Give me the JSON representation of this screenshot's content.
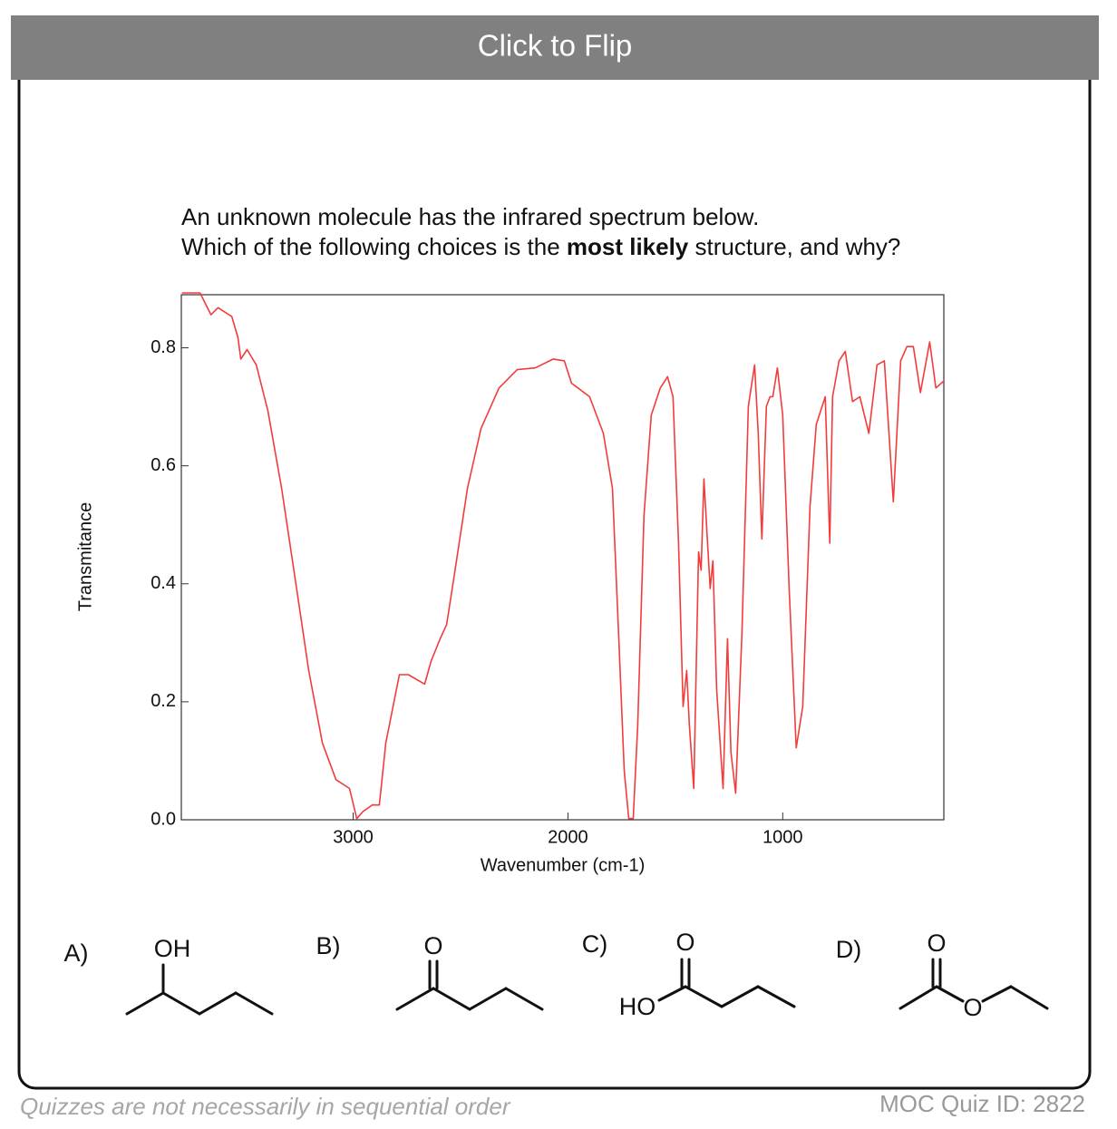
{
  "header": {
    "button": "Click to Flip"
  },
  "question": {
    "line1": "An unknown molecule has the infrared spectrum below.",
    "line2": [
      "Which of the following choices is the ",
      "most likely",
      " structure, and why?"
    ]
  },
  "chart_data": {
    "type": "line",
    "xlabel": "Wavenumber (cm-1)",
    "ylabel": "Transmitance",
    "xlim": [
      3800,
      250
    ],
    "ylim": [
      0,
      0.89
    ],
    "xticks": [
      3000,
      2000,
      1000
    ],
    "yticks": [
      {
        "value": 0,
        "label": "0.0"
      },
      0.2,
      0.4,
      0.6,
      0.8
    ],
    "color": "#f23c3c",
    "x": [
      3797,
      3713,
      3662,
      3629,
      3565,
      3536,
      3523,
      3494,
      3451,
      3397,
      3333,
      3270,
      3207,
      3143,
      3080,
      3017,
      2983,
      2954,
      2911,
      2878,
      2848,
      2785,
      2743,
      2667,
      2637,
      2595,
      2565,
      2532,
      2468,
      2405,
      2321,
      2236,
      2152,
      2068,
      2017,
      1983,
      1899,
      1835,
      1793,
      1764,
      1738,
      1717,
      1696,
      1675,
      1646,
      1612,
      1570,
      1536,
      1511,
      1485,
      1464,
      1447,
      1435,
      1414,
      1392,
      1380,
      1367,
      1350,
      1338,
      1325,
      1308,
      1278,
      1257,
      1241,
      1219,
      1190,
      1160,
      1131,
      1114,
      1097,
      1076,
      1059,
      1046,
      1025,
      1000,
      970,
      937,
      907,
      873,
      844,
      802,
      781,
      768,
      738,
      709,
      675,
      641,
      599,
      561,
      527,
      485,
      451,
      422,
      392,
      359,
      316,
      287,
      249
    ],
    "values": [
      0.893,
      0.893,
      0.856,
      0.868,
      0.853,
      0.817,
      0.781,
      0.797,
      0.771,
      0.693,
      0.562,
      0.408,
      0.253,
      0.13,
      0.068,
      0.053,
      0.002,
      0.014,
      0.025,
      0.025,
      0.13,
      0.246,
      0.246,
      0.23,
      0.269,
      0.307,
      0.331,
      0.408,
      0.562,
      0.663,
      0.732,
      0.763,
      0.766,
      0.781,
      0.778,
      0.74,
      0.717,
      0.655,
      0.562,
      0.315,
      0.083,
      0.002,
      0.002,
      0.161,
      0.516,
      0.686,
      0.732,
      0.751,
      0.717,
      0.469,
      0.192,
      0.253,
      0.161,
      0.053,
      0.454,
      0.423,
      0.578,
      0.469,
      0.392,
      0.439,
      0.222,
      0.053,
      0.307,
      0.114,
      0.045,
      0.315,
      0.701,
      0.771,
      0.655,
      0.476,
      0.701,
      0.717,
      0.717,
      0.766,
      0.686,
      0.392,
      0.122,
      0.192,
      0.531,
      0.67,
      0.717,
      0.469,
      0.717,
      0.778,
      0.794,
      0.709,
      0.717,
      0.655,
      0.771,
      0.778,
      0.539,
      0.778,
      0.802,
      0.802,
      0.724,
      0.81,
      0.732,
      0.744
    ]
  },
  "choices": [
    {
      "label": "A)",
      "atoms": [
        "OH"
      ]
    },
    {
      "label": "B)",
      "atoms": [
        "O"
      ]
    },
    {
      "label": "C)",
      "atoms": [
        "O",
        "HO"
      ]
    },
    {
      "label": "D)",
      "atoms": [
        "O",
        "O"
      ]
    }
  ],
  "footer": {
    "note": "Quizzes are not necessarily in sequential order",
    "quiz_id": "MOC Quiz ID: 2822"
  }
}
